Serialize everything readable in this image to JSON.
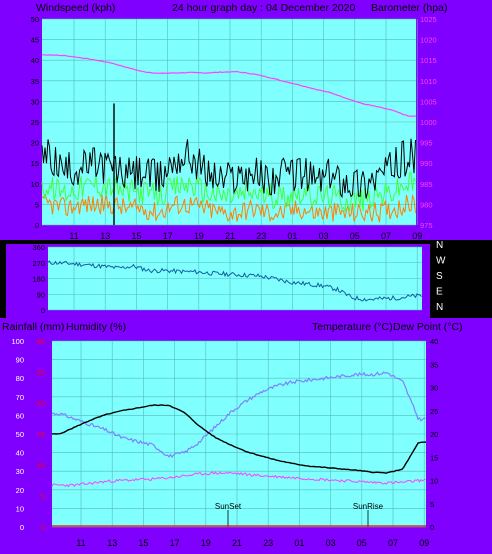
{
  "colors": {
    "purple": "#8000ff",
    "plot_bg": "#80ffff",
    "grid": "#55bbbb",
    "windspeed": "#000000",
    "wind_mid": "#40ff40",
    "wind_gust": "#ff8000",
    "barometer": "#ff40ff",
    "direction": "#1060a0",
    "temperature": "#000000",
    "humidity": "#8080ff",
    "dew_point": "#ff40ff",
    "rainfall_axis": "#ff0000",
    "text_dark": "#000000",
    "text_light": "#ffffff"
  },
  "top_chart": {
    "left_title": "Windspeed (kph)",
    "center_title": "24 hour graph day : 04 December 2020",
    "right_title": "Barometer (hpa)",
    "windspeed_ticks": [
      "0",
      "5",
      "10",
      "15",
      "20",
      "25",
      "30",
      "35",
      "40",
      "45",
      "50"
    ],
    "barometer_ticks": [
      "975",
      "980",
      "985",
      "990",
      "995",
      "1000",
      "1005",
      "1010",
      "1015",
      "1020",
      "1025"
    ],
    "hour_labels": [
      "11",
      "13",
      "15",
      "17",
      "19",
      "21",
      "23",
      "01",
      "03",
      "05",
      "07",
      "09"
    ]
  },
  "direction_chart": {
    "left_ticks": [
      "360",
      "270",
      "180",
      "90",
      "0"
    ],
    "compass_labels": [
      "N",
      "W",
      "S",
      "E",
      "N"
    ]
  },
  "bottom_chart": {
    "left_title": "Rainfall (mm)",
    "left_title2": "Humidity (%)",
    "right_title": "Temperature (°C)",
    "right_title2": "Dew Point (°C)",
    "humidity_ticks": [
      "0",
      "10",
      "20",
      "30",
      "40",
      "50",
      "60",
      "70",
      "80",
      "90",
      "100"
    ],
    "rain_ticks": [
      "0",
      "5",
      "10",
      "15",
      "20",
      "25",
      "30"
    ],
    "temperature_ticks": [
      "0",
      "5",
      "10",
      "15",
      "20",
      "25",
      "30",
      "35",
      "40"
    ],
    "hour_labels": [
      "11",
      "13",
      "15",
      "17",
      "19",
      "21",
      "23",
      "01",
      "03",
      "05",
      "07",
      "09"
    ],
    "sunset_label": "SunSet",
    "sunrise_label": "SunRise"
  },
  "chart_data": [
    {
      "type": "line",
      "x_unit": "hour",
      "x": [
        "10",
        "11",
        "12",
        "13",
        "14",
        "15",
        "16",
        "17",
        "18",
        "19",
        "20",
        "21",
        "22",
        "23",
        "00",
        "01",
        "02",
        "03",
        "04",
        "05",
        "06",
        "07",
        "08",
        "09"
      ],
      "ylim_left": [
        0,
        50
      ],
      "ylim_right": [
        975,
        1025
      ],
      "grid": true,
      "series": [
        {
          "axis": "left",
          "values": [
            17,
            13,
            14,
            15,
            14,
            12,
            13,
            11,
            16,
            17,
            13,
            11,
            12,
            13,
            11,
            12,
            13,
            11,
            12,
            11,
            10,
            12,
            14,
            17
          ]
        },
        {
          "axis": "left",
          "values": [
            9,
            8,
            9,
            10,
            9,
            8,
            8,
            7,
            9,
            10,
            8,
            7,
            7,
            8,
            7,
            7,
            8,
            7,
            7,
            6,
            6,
            7,
            8,
            10
          ]
        },
        {
          "axis": "left",
          "values": [
            5,
            4,
            5,
            5,
            5,
            4,
            4,
            3,
            5,
            5,
            4,
            3,
            3,
            4,
            3,
            3,
            4,
            3,
            3,
            3,
            3,
            3,
            4,
            5
          ]
        },
        {
          "axis": "right",
          "values": [
            1016.3,
            1016.1,
            1015.6,
            1015.0,
            1014.3,
            1013.2,
            1012.2,
            1011.8,
            1011.9,
            1012.0,
            1011.9,
            1012.1,
            1012.2,
            1011.7,
            1010.9,
            1009.9,
            1009.0,
            1008.0,
            1007.1,
            1005.8,
            1004.5,
            1003.7,
            1002.8,
            1001.4
          ]
        }
      ]
    },
    {
      "type": "line",
      "x_unit": "hour",
      "x": [
        "10",
        "11",
        "12",
        "13",
        "14",
        "15",
        "16",
        "17",
        "18",
        "19",
        "20",
        "21",
        "22",
        "23",
        "00",
        "01",
        "02",
        "03",
        "04",
        "05",
        "06",
        "07",
        "08",
        "09"
      ],
      "ylim": [
        0,
        360
      ],
      "grid": true,
      "series": [
        {
          "values": [
            270,
            265,
            258,
            250,
            240,
            250,
            225,
            225,
            220,
            218,
            210,
            205,
            200,
            195,
            180,
            160,
            150,
            140,
            120,
            70,
            60,
            65,
            70,
            80
          ]
        }
      ]
    },
    {
      "type": "line",
      "x_unit": "hour",
      "x": [
        "10",
        "11",
        "12",
        "13",
        "14",
        "15",
        "16",
        "17",
        "18",
        "19",
        "20",
        "21",
        "22",
        "23",
        "00",
        "01",
        "02",
        "03",
        "04",
        "05",
        "06",
        "07",
        "08",
        "09"
      ],
      "ylim_left": [
        0,
        100
      ],
      "ylim_rain": [
        0,
        30
      ],
      "ylim_right": [
        0,
        40
      ],
      "grid": true,
      "sunset_hour": 20.5,
      "sunrise_hour": 6.5,
      "series": [
        {
          "axis": "right",
          "values": [
            20.0,
            21.5,
            23.0,
            24.2,
            25.0,
            25.6,
            26.2,
            26.2,
            24.6,
            21.6,
            19.2,
            17.6,
            16.2,
            15.2,
            14.3,
            13.6,
            13.1,
            12.8,
            12.5,
            12.2,
            11.8,
            11.6,
            12.5,
            18.2
          ]
        },
        {
          "axis": "left",
          "values": [
            61,
            58,
            55,
            52,
            48,
            46,
            44,
            38,
            40,
            46,
            54,
            62,
            68,
            73,
            76,
            78,
            79,
            80,
            81,
            82,
            82,
            83,
            78,
            58
          ]
        },
        {
          "axis": "right",
          "values": [
            9.0,
            9.0,
            9.4,
            9.8,
            10.0,
            10.2,
            10.3,
            10.6,
            11.0,
            11.4,
            11.6,
            11.6,
            11.3,
            11.0,
            10.8,
            10.6,
            10.4,
            10.2,
            10.0,
            9.8,
            9.6,
            9.5,
            9.6,
            10.0
          ]
        },
        {
          "axis": "rain",
          "values": [
            0,
            0,
            0,
            0,
            0,
            0,
            0,
            0,
            0,
            0,
            0,
            0,
            0,
            0,
            0,
            0,
            0,
            0,
            0,
            0,
            0,
            0,
            0,
            0
          ]
        }
      ]
    }
  ]
}
